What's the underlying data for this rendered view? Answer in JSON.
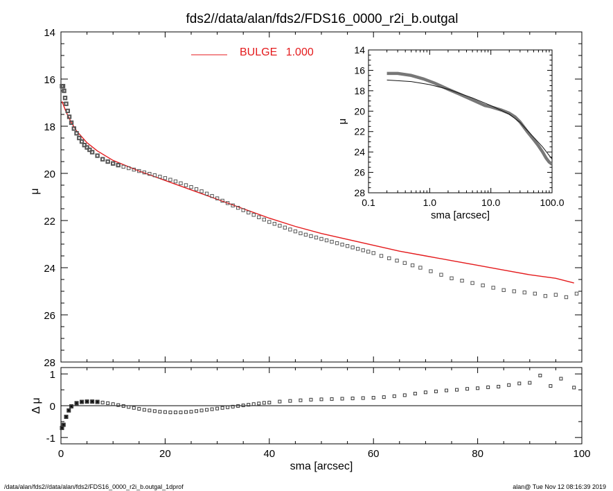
{
  "title": "fds2//data/alan/fds2/FDS16_0000_r2i_b.outgal",
  "footer_left": "/data/alan/fds2//data/alan/fds2/FDS16_0000_r2i_b.outgal_1dprof",
  "footer_right": "alan@  Tue Nov 12 08:16:39 2019",
  "colors": {
    "model": "#e41a1c",
    "data": "#555555",
    "axes": "#000000"
  },
  "chart_data": [
    {
      "panel": "main",
      "type": "scatter",
      "title": "fds2//data/alan/fds2/FDS16_0000_r2i_b.outgal",
      "xlabel": "",
      "ylabel": "μ",
      "xlim": [
        0,
        100
      ],
      "ylim": [
        28,
        14
      ],
      "y_inverted": true,
      "xticks": [
        0,
        20,
        40,
        60,
        80,
        100
      ],
      "yticks": [
        14,
        16,
        18,
        20,
        22,
        24,
        26,
        28
      ],
      "legend": {
        "label": "BULGE",
        "value": "1.000",
        "placement": "top-center"
      },
      "series": [
        {
          "name": "BULGE  1.000",
          "kind": "line",
          "x": [
            0.2,
            1,
            2,
            3,
            5,
            7,
            10,
            15,
            20,
            25,
            30,
            35,
            40,
            45,
            50,
            55,
            60,
            65,
            70,
            75,
            80,
            85,
            90,
            95,
            98.5
          ],
          "y": [
            16.95,
            17.4,
            17.85,
            18.2,
            18.7,
            19.05,
            19.45,
            19.9,
            20.3,
            20.7,
            21.1,
            21.5,
            21.9,
            22.25,
            22.55,
            22.8,
            23.05,
            23.3,
            23.5,
            23.7,
            23.9,
            24.1,
            24.3,
            24.45,
            24.65
          ]
        },
        {
          "name": "",
          "kind": "markers",
          "x": [
            0.2,
            0.4,
            0.6,
            0.8,
            1.0,
            1.3,
            1.6,
            2.0,
            2.5,
            3.0,
            3.5,
            4.0,
            4.5,
            5.0,
            5.5,
            6.0,
            7.0,
            8.0,
            9.0,
            10,
            11,
            12,
            13,
            14,
            15,
            16,
            17,
            18,
            19,
            20,
            21,
            22,
            23,
            24,
            25,
            26,
            27,
            28,
            29,
            30,
            31,
            32,
            33,
            34,
            35,
            36,
            37,
            38,
            39,
            40,
            41,
            42,
            43,
            44,
            45,
            46,
            47,
            48,
            49,
            50,
            51,
            52,
            53,
            54,
            55,
            56,
            57,
            58,
            59,
            60,
            61.5,
            63,
            64.5,
            66,
            67.5,
            69,
            71,
            73,
            75,
            77,
            79,
            81,
            83,
            85,
            87,
            89,
            91,
            93,
            95,
            97,
            99
          ],
          "y": [
            16.3,
            16.3,
            16.5,
            16.8,
            17.05,
            17.35,
            17.6,
            17.85,
            18.1,
            18.3,
            18.5,
            18.65,
            18.8,
            18.9,
            19.0,
            19.1,
            19.25,
            19.4,
            19.5,
            19.58,
            19.65,
            19.72,
            19.78,
            19.84,
            19.9,
            19.96,
            20.02,
            20.08,
            20.14,
            20.2,
            20.27,
            20.34,
            20.42,
            20.5,
            20.58,
            20.67,
            20.76,
            20.86,
            20.96,
            21.06,
            21.16,
            21.26,
            21.36,
            21.46,
            21.56,
            21.66,
            21.76,
            21.86,
            21.96,
            22.06,
            22.14,
            22.22,
            22.3,
            22.38,
            22.46,
            22.54,
            22.6,
            22.66,
            22.72,
            22.78,
            22.84,
            22.9,
            22.96,
            23.02,
            23.08,
            23.14,
            23.2,
            23.26,
            23.32,
            23.38,
            23.5,
            23.6,
            23.7,
            23.8,
            23.9,
            24.0,
            24.15,
            24.3,
            24.45,
            24.55,
            24.65,
            24.75,
            24.85,
            24.95,
            25.0,
            25.05,
            25.1,
            25.2,
            25.15,
            25.25,
            25.1
          ]
        }
      ]
    },
    {
      "panel": "inset",
      "type": "line",
      "xlabel": "sma [arcsec]",
      "ylabel": "μ",
      "x_scale": "log",
      "xlim": [
        0.1,
        100.0
      ],
      "ylim": [
        28,
        14
      ],
      "y_inverted": true,
      "xticks": [
        0.1,
        1.0,
        10.0,
        100.0
      ],
      "xtick_labels": [
        "0.1",
        "1.0",
        "10.0",
        "100.0"
      ],
      "yticks": [
        14,
        16,
        18,
        20,
        22,
        24,
        26,
        28
      ],
      "series": [
        {
          "name": "",
          "kind": "thin-line",
          "x": [
            0.2,
            0.5,
            1,
            2,
            5,
            10,
            20,
            30,
            50,
            70,
            100
          ],
          "y": [
            16.95,
            17.1,
            17.4,
            17.85,
            18.7,
            19.45,
            20.3,
            21.1,
            22.55,
            23.5,
            24.7
          ]
        },
        {
          "name": "",
          "kind": "thick-line",
          "x": [
            0.2,
            0.3,
            0.5,
            0.8,
            1.2,
            2,
            3,
            5,
            8,
            10,
            15,
            20,
            25,
            30,
            40,
            50,
            60,
            70,
            80,
            90,
            100
          ],
          "y": [
            16.3,
            16.3,
            16.5,
            16.85,
            17.25,
            17.85,
            18.3,
            18.9,
            19.45,
            19.58,
            19.9,
            20.2,
            20.58,
            21.06,
            22.06,
            22.78,
            23.4,
            24.0,
            24.6,
            25.0,
            25.2
          ]
        }
      ]
    },
    {
      "panel": "residual",
      "type": "scatter",
      "xlabel": "sma [arcsec]",
      "ylabel": "Δ μ",
      "xlim": [
        0,
        100
      ],
      "ylim": [
        -1.2,
        1.2
      ],
      "xticks": [
        0,
        20,
        40,
        60,
        80,
        100
      ],
      "yticks": [
        -1,
        0,
        1
      ],
      "series": [
        {
          "name": "",
          "kind": "markers",
          "x": [
            0.2,
            0.5,
            1,
            1.5,
            2,
            3,
            4,
            5,
            6,
            7,
            8,
            9,
            10,
            11,
            12,
            13,
            14,
            15,
            16,
            17,
            18,
            19,
            20,
            21,
            22,
            23,
            24,
            25,
            26,
            27,
            28,
            29,
            30,
            31,
            32,
            33,
            34,
            35,
            36,
            37,
            38,
            39,
            40,
            42,
            44,
            46,
            48,
            50,
            52,
            54,
            56,
            58,
            60,
            62,
            64,
            66,
            68,
            70,
            72,
            74,
            76,
            78,
            80,
            82,
            84,
            86,
            88,
            90,
            92,
            94,
            96,
            98.5
          ],
          "y": [
            -0.7,
            -0.6,
            -0.35,
            -0.15,
            -0.02,
            0.08,
            0.12,
            0.13,
            0.13,
            0.12,
            0.1,
            0.08,
            0.05,
            0.02,
            -0.01,
            -0.04,
            -0.07,
            -0.1,
            -0.13,
            -0.15,
            -0.17,
            -0.19,
            -0.2,
            -0.21,
            -0.21,
            -0.21,
            -0.2,
            -0.19,
            -0.17,
            -0.15,
            -0.13,
            -0.11,
            -0.09,
            -0.07,
            -0.05,
            -0.03,
            -0.01,
            0.01,
            0.03,
            0.05,
            0.07,
            0.09,
            0.1,
            0.13,
            0.15,
            0.17,
            0.19,
            0.2,
            0.21,
            0.22,
            0.23,
            0.24,
            0.25,
            0.27,
            0.3,
            0.33,
            0.38,
            0.42,
            0.45,
            0.48,
            0.5,
            0.53,
            0.55,
            0.58,
            0.6,
            0.65,
            0.7,
            0.72,
            0.95,
            0.62,
            0.85,
            0.57
          ]
        }
      ]
    }
  ]
}
